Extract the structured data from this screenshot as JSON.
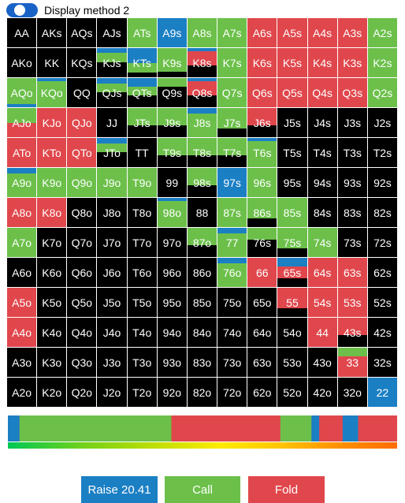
{
  "toggle": {
    "label": "Display method 2"
  },
  "colors": {
    "raise": "#1b7fc4",
    "call": "#6cc04a",
    "fold": "#e0474c",
    "none": "#000000"
  },
  "rows": [
    [
      "AA",
      "AKs",
      "AQs",
      "AJs",
      "ATs",
      "A9s",
      "A8s",
      "A7s",
      "A6s",
      "A5s",
      "A4s",
      "A3s",
      "A2s"
    ],
    [
      "AKo",
      "KK",
      "KQs",
      "KJs",
      "KTs",
      "K9s",
      "K8s",
      "K7s",
      "K6s",
      "K5s",
      "K4s",
      "K3s",
      "K2s"
    ],
    [
      "AQo",
      "KQo",
      "QQ",
      "QJs",
      "QTs",
      "Q9s",
      "Q8s",
      "Q7s",
      "Q6s",
      "Q5s",
      "Q4s",
      "Q3s",
      "Q2s"
    ],
    [
      "AJo",
      "KJo",
      "QJo",
      "JJ",
      "JTs",
      "J9s",
      "J8s",
      "J7s",
      "J6s",
      "J5s",
      "J4s",
      "J3s",
      "J2s"
    ],
    [
      "ATo",
      "KTo",
      "QTo",
      "JTo",
      "TT",
      "T9s",
      "T8s",
      "T7s",
      "T6s",
      "T5s",
      "T4s",
      "T3s",
      "T2s"
    ],
    [
      "A9o",
      "K9o",
      "Q9o",
      "J9o",
      "T9o",
      "99",
      "98s",
      "97s",
      "96s",
      "95s",
      "94s",
      "93s",
      "92s"
    ],
    [
      "A8o",
      "K8o",
      "Q8o",
      "J8o",
      "T8o",
      "98o",
      "88",
      "87s",
      "86s",
      "85s",
      "84s",
      "83s",
      "82s"
    ],
    [
      "A7o",
      "K7o",
      "Q7o",
      "J7o",
      "T7o",
      "97o",
      "87o",
      "77",
      "76s",
      "75s",
      "74s",
      "73s",
      "72s"
    ],
    [
      "A6o",
      "K6o",
      "Q6o",
      "J6o",
      "T6o",
      "96o",
      "86o",
      "76o",
      "66",
      "65s",
      "64s",
      "63s",
      "62s"
    ],
    [
      "A5o",
      "K5o",
      "Q5o",
      "J5o",
      "T5o",
      "95o",
      "85o",
      "75o",
      "65o",
      "55",
      "54s",
      "53s",
      "52s"
    ],
    [
      "A4o",
      "K4o",
      "Q4o",
      "J4o",
      "T4o",
      "94o",
      "84o",
      "74o",
      "64o",
      "54o",
      "44",
      "43s",
      "42s"
    ],
    [
      "A3o",
      "K3o",
      "Q3o",
      "J3o",
      "T3o",
      "93o",
      "83o",
      "73o",
      "63o",
      "53o",
      "43o",
      "33",
      "32s"
    ],
    [
      "A2o",
      "K2o",
      "Q2o",
      "J2o",
      "T2o",
      "92o",
      "82o",
      "72o",
      "62o",
      "52o",
      "42o",
      "32o",
      "22"
    ]
  ],
  "strategy": [
    [
      "",
      "",
      "",
      "",
      "c",
      "r",
      "c",
      "c",
      "f",
      "f",
      "f",
      "f",
      "c"
    ],
    [
      "",
      "",
      "",
      "r.15c.35",
      "rc.35",
      "c.8",
      "r.1f",
      "c",
      "f",
      "f",
      "f",
      "f",
      "c"
    ],
    [
      "c.9r.1",
      "r.1c.9",
      "",
      "r.2c.3",
      "r.3c.3",
      "c.3",
      "r.1f",
      "c",
      "f",
      "f",
      "f",
      "f",
      "c"
    ],
    [
      "c.5f.5",
      "f",
      "f",
      "",
      "c.6",
      "c.6",
      "r.2c.8",
      "c.7",
      "f.6",
      "",
      "",
      "",
      ""
    ],
    [
      "f",
      "f",
      "f",
      "r.2c.3",
      "",
      "c.6",
      "c.6",
      "c.6",
      "r.1c.9",
      "",
      "",
      "",
      ""
    ],
    [
      "r.2c.8",
      "c",
      "c",
      "c",
      "c",
      "",
      "c.6",
      "r",
      "c",
      "",
      "",
      "",
      ""
    ],
    [
      "f",
      "f",
      "",
      "",
      "",
      "r.1c.9",
      "",
      "c",
      "c.7",
      "c",
      "",
      "",
      ""
    ],
    [
      "c",
      "",
      "",
      "",
      "",
      "",
      "c.6",
      "r.2c.8",
      "c.4",
      "c.7",
      "c",
      "",
      ""
    ],
    [
      "",
      "",
      "",
      "",
      "",
      "",
      "",
      "r.2c.8",
      "f",
      "r.3f.4",
      "f",
      "f",
      ""
    ],
    [
      "f",
      "",
      "",
      "",
      "",
      "",
      "",
      "",
      "",
      "f.7",
      "f",
      "f",
      ""
    ],
    [
      "f",
      "",
      "",
      "",
      "",
      "",
      "",
      "",
      "",
      "",
      "f",
      "f.6",
      ""
    ],
    [
      "",
      "",
      "",
      "",
      "",
      "",
      "",
      "",
      "",
      "",
      "",
      "c.3f.7",
      ""
    ],
    [
      "",
      "",
      "",
      "",
      "",
      "",
      "",
      "",
      "",
      "",
      "",
      "",
      "r"
    ]
  ],
  "freq_bar": {
    "segments": [
      {
        "action": "raise",
        "start": 0.0,
        "end": 0.03
      },
      {
        "action": "call",
        "start": 0.03,
        "end": 0.42
      },
      {
        "action": "fold",
        "start": 0.42,
        "end": 0.7
      },
      {
        "action": "call",
        "start": 0.7,
        "end": 0.78
      },
      {
        "action": "raise",
        "start": 0.78,
        "end": 0.8
      },
      {
        "action": "fold",
        "start": 0.8,
        "end": 0.86
      },
      {
        "action": "raise",
        "start": 0.86,
        "end": 0.9
      },
      {
        "action": "fold",
        "start": 0.9,
        "end": 1.0
      }
    ]
  },
  "actions": [
    {
      "name": "raise-button",
      "label": "Raise 20.41"
    },
    {
      "name": "call-button",
      "label": "Call"
    },
    {
      "name": "fold-button",
      "label": "Fold"
    }
  ]
}
